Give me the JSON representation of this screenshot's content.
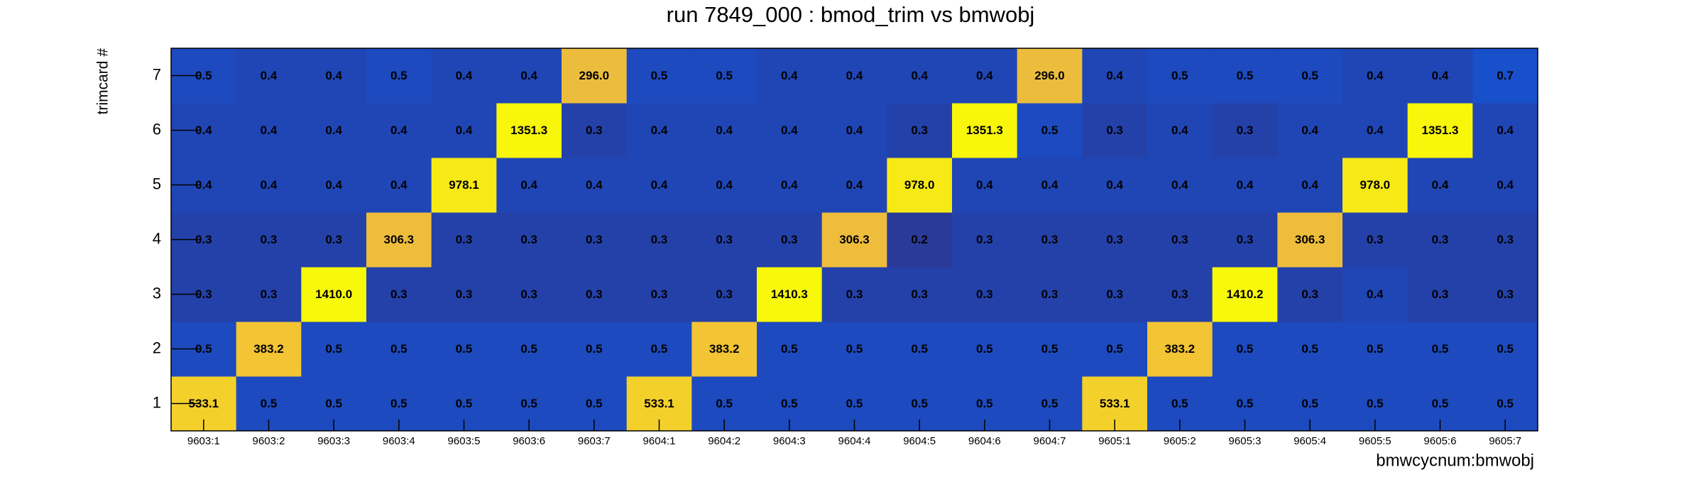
{
  "chart_data": {
    "type": "heatmap",
    "title": "run 7849_000 : bmod_trim vs bmwobj",
    "x_label": "bmwcycnum:bmwobj",
    "y_label": "trimcard #",
    "x_categories": [
      "9603:1",
      "9603:2",
      "9603:3",
      "9603:4",
      "9603:5",
      "9603:6",
      "9603:7",
      "9604:1",
      "9604:2",
      "9604:3",
      "9604:4",
      "9604:5",
      "9604:6",
      "9604:7",
      "9605:1",
      "9605:2",
      "9605:3",
      "9605:4",
      "9605:5",
      "9605:6",
      "9605:7"
    ],
    "y_categories": [
      1,
      2,
      3,
      4,
      5,
      6,
      7
    ],
    "values": [
      [
        533.1,
        0.5,
        0.5,
        0.5,
        0.5,
        0.5,
        0.5,
        533.1,
        0.5,
        0.5,
        0.5,
        0.5,
        0.5,
        0.5,
        533.1,
        0.5,
        0.5,
        0.5,
        0.5,
        0.5,
        0.5
      ],
      [
        0.5,
        383.2,
        0.5,
        0.5,
        0.5,
        0.5,
        0.5,
        0.5,
        383.2,
        0.5,
        0.5,
        0.5,
        0.5,
        0.5,
        0.5,
        383.2,
        0.5,
        0.5,
        0.5,
        0.5,
        0.5
      ],
      [
        0.3,
        0.3,
        1410.0,
        0.3,
        0.3,
        0.3,
        0.3,
        0.3,
        0.3,
        1410.3,
        0.3,
        0.3,
        0.3,
        0.3,
        0.3,
        0.3,
        1410.2,
        0.3,
        0.4,
        0.3,
        0.3
      ],
      [
        0.3,
        0.3,
        0.3,
        306.3,
        0.3,
        0.3,
        0.3,
        0.3,
        0.3,
        0.3,
        306.3,
        0.2,
        0.3,
        0.3,
        0.3,
        0.3,
        0.3,
        306.3,
        0.3,
        0.3,
        0.3
      ],
      [
        0.4,
        0.4,
        0.4,
        0.4,
        978.1,
        0.4,
        0.4,
        0.4,
        0.4,
        0.4,
        0.4,
        978.0,
        0.4,
        0.4,
        0.4,
        0.4,
        0.4,
        0.4,
        978.0,
        0.4,
        0.4
      ],
      [
        0.4,
        0.4,
        0.4,
        0.4,
        0.4,
        1351.3,
        0.3,
        0.4,
        0.4,
        0.4,
        0.4,
        0.3,
        1351.3,
        0.5,
        0.3,
        0.4,
        0.3,
        0.4,
        0.4,
        1351.3,
        0.4
      ],
      [
        0.5,
        0.4,
        0.4,
        0.5,
        0.4,
        0.4,
        296.0,
        0.5,
        0.5,
        0.4,
        0.4,
        0.4,
        0.4,
        296.0,
        0.4,
        0.5,
        0.5,
        0.5,
        0.4,
        0.4,
        0.7
      ]
    ],
    "value_labels": [
      [
        "533.1",
        "0.5",
        "0.5",
        "0.5",
        "0.5",
        "0.5",
        "0.5",
        "533.1",
        "0.5",
        "0.5",
        "0.5",
        "0.5",
        "0.5",
        "0.5",
        "533.1",
        "0.5",
        "0.5",
        "0.5",
        "0.5",
        "0.5",
        "0.5"
      ],
      [
        "0.5",
        "383.2",
        "0.5",
        "0.5",
        "0.5",
        "0.5",
        "0.5",
        "0.5",
        "383.2",
        "0.5",
        "0.5",
        "0.5",
        "0.5",
        "0.5",
        "0.5",
        "383.2",
        "0.5",
        "0.5",
        "0.5",
        "0.5",
        "0.5"
      ],
      [
        "0.3",
        "0.3",
        "1410.0",
        "0.3",
        "0.3",
        "0.3",
        "0.3",
        "0.3",
        "0.3",
        "1410.3",
        "0.3",
        "0.3",
        "0.3",
        "0.3",
        "0.3",
        "0.3",
        "1410.2",
        "0.3",
        "0.4",
        "0.3",
        "0.3"
      ],
      [
        "0.3",
        "0.3",
        "0.3",
        "306.3",
        "0.3",
        "0.3",
        "0.3",
        "0.3",
        "0.3",
        "0.3",
        "306.3",
        "0.2",
        "0.3",
        "0.3",
        "0.3",
        "0.3",
        "0.3",
        "306.3",
        "0.3",
        "0.3",
        "0.3"
      ],
      [
        "0.4",
        "0.4",
        "0.4",
        "0.4",
        "978.1",
        "0.4",
        "0.4",
        "0.4",
        "0.4",
        "0.4",
        "0.4",
        "978.0",
        "0.4",
        "0.4",
        "0.4",
        "0.4",
        "0.4",
        "0.4",
        "978.0",
        "0.4",
        "0.4"
      ],
      [
        "0.4",
        "0.4",
        "0.4",
        "0.4",
        "0.4",
        "1351.3",
        "0.3",
        "0.4",
        "0.4",
        "0.4",
        "0.4",
        "0.3",
        "1351.3",
        "0.5",
        "0.3",
        "0.4",
        "0.3",
        "0.4",
        "0.4",
        "1351.3",
        "0.4"
      ],
      [
        "0.5",
        "0.4",
        "0.4",
        "0.5",
        "0.4",
        "0.4",
        "296.0",
        "0.5",
        "0.5",
        "0.4",
        "0.4",
        "0.4",
        "0.4",
        "296.0",
        "0.4",
        "0.5",
        "0.5",
        "0.5",
        "0.4",
        "0.4",
        "0.7"
      ]
    ],
    "zlim": [
      0.2,
      1410.3
    ],
    "zlog": true,
    "palette": [
      "#2a3a99",
      "#1553d4",
      "#0f6be0",
      "#2fa0c0",
      "#8ac070",
      "#f2bd3a",
      "#f8f80a"
    ]
  }
}
